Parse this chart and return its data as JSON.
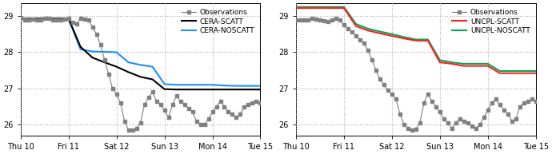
{
  "xlim": [
    0,
    120
  ],
  "ylim": [
    25.7,
    29.35
  ],
  "yticks": [
    26,
    27,
    28,
    29
  ],
  "xtick_positions": [
    0,
    24,
    48,
    72,
    96,
    120
  ],
  "xtick_labels": [
    "Thu 10",
    "Fri 11",
    "Sat 12",
    "Sun 13",
    "Mon 14",
    "Tue 15"
  ],
  "obs1_x": [
    0,
    2,
    4,
    6,
    8,
    10,
    12,
    14,
    16,
    18,
    20,
    22,
    24,
    26,
    28,
    30,
    32,
    34,
    36,
    38,
    40,
    42,
    44,
    46,
    48,
    50,
    52,
    54,
    56,
    58,
    60,
    62,
    64,
    66,
    68,
    70,
    72,
    74,
    76,
    78,
    80,
    82,
    84,
    86,
    88,
    90,
    92,
    94,
    96,
    98,
    100,
    102,
    104,
    106,
    108,
    110,
    112,
    114,
    116,
    118,
    120
  ],
  "obs1_y": [
    28.95,
    28.9,
    28.88,
    28.92,
    28.88,
    28.9,
    28.93,
    28.93,
    28.9,
    28.88,
    28.9,
    28.92,
    28.93,
    28.83,
    28.78,
    28.93,
    28.92,
    28.88,
    28.7,
    28.5,
    28.2,
    27.8,
    27.4,
    27.0,
    26.85,
    26.6,
    26.1,
    25.85,
    25.85,
    25.9,
    26.05,
    26.55,
    26.75,
    26.9,
    26.65,
    26.55,
    26.4,
    26.2,
    26.55,
    26.8,
    26.65,
    26.55,
    26.45,
    26.35,
    26.1,
    26.0,
    26.0,
    26.15,
    26.35,
    26.5,
    26.65,
    26.5,
    26.35,
    26.3,
    26.2,
    26.3,
    26.5,
    26.55,
    26.6,
    26.65,
    26.6
  ],
  "cera_scatt_x": [
    0,
    6,
    12,
    18,
    24,
    30,
    36,
    42,
    48,
    54,
    60,
    66,
    72,
    78,
    84,
    90,
    96,
    102,
    108,
    114,
    120
  ],
  "cera_scatt_y": [
    28.92,
    28.93,
    28.93,
    28.93,
    28.93,
    28.15,
    27.85,
    27.72,
    27.6,
    27.45,
    27.32,
    27.25,
    26.98,
    26.97,
    26.97,
    26.97,
    26.97,
    26.97,
    26.97,
    26.97,
    26.97
  ],
  "cera_noscatt_x": [
    0,
    6,
    12,
    18,
    24,
    30,
    36,
    42,
    48,
    54,
    60,
    66,
    72,
    78,
    84,
    90,
    96,
    102,
    108,
    114,
    120
  ],
  "cera_noscatt_y": [
    28.92,
    28.93,
    28.93,
    28.93,
    28.93,
    28.08,
    28.02,
    28.01,
    28.0,
    27.72,
    27.65,
    27.6,
    27.12,
    27.1,
    27.1,
    27.1,
    27.1,
    27.08,
    27.07,
    27.07,
    27.07
  ],
  "obs2_x": [
    0,
    2,
    4,
    6,
    8,
    10,
    12,
    14,
    16,
    18,
    20,
    22,
    24,
    26,
    28,
    30,
    32,
    34,
    36,
    38,
    40,
    42,
    44,
    46,
    48,
    50,
    52,
    54,
    56,
    58,
    60,
    62,
    64,
    66,
    68,
    70,
    72,
    74,
    76,
    78,
    80,
    82,
    84,
    86,
    88,
    90,
    92,
    94,
    96,
    98,
    100,
    102,
    104,
    106,
    108,
    110,
    112,
    114,
    116,
    118,
    120
  ],
  "obs2_y": [
    28.9,
    28.88,
    28.9,
    28.88,
    28.93,
    28.92,
    28.88,
    28.87,
    28.85,
    28.9,
    28.93,
    28.88,
    28.75,
    28.65,
    28.55,
    28.45,
    28.35,
    28.25,
    28.05,
    27.8,
    27.5,
    27.25,
    27.1,
    26.95,
    26.85,
    26.7,
    26.3,
    26.0,
    25.9,
    25.85,
    25.88,
    26.05,
    26.6,
    26.85,
    26.65,
    26.5,
    26.35,
    26.15,
    26.05,
    25.9,
    26.05,
    26.15,
    26.1,
    26.05,
    25.95,
    25.9,
    26.0,
    26.2,
    26.4,
    26.6,
    26.7,
    26.55,
    26.4,
    26.3,
    26.1,
    26.15,
    26.5,
    26.6,
    26.65,
    26.7,
    26.65
  ],
  "uncpl_scatt_x": [
    0,
    6,
    12,
    18,
    24,
    30,
    36,
    42,
    48,
    54,
    60,
    66,
    72,
    78,
    84,
    90,
    96,
    102,
    108,
    114,
    120
  ],
  "uncpl_scatt_y": [
    29.22,
    29.22,
    29.22,
    29.22,
    29.22,
    28.72,
    28.6,
    28.52,
    28.45,
    28.38,
    28.32,
    28.32,
    27.72,
    27.68,
    27.62,
    27.62,
    27.62,
    27.42,
    27.42,
    27.42,
    27.42
  ],
  "uncpl_noscatt_x": [
    0,
    6,
    12,
    18,
    24,
    30,
    36,
    42,
    48,
    54,
    60,
    66,
    72,
    78,
    84,
    90,
    96,
    102,
    108,
    114,
    120
  ],
  "uncpl_noscatt_y": [
    29.25,
    29.25,
    29.25,
    29.25,
    29.25,
    28.78,
    28.65,
    28.57,
    28.5,
    28.42,
    28.35,
    28.35,
    27.78,
    27.72,
    27.68,
    27.68,
    27.68,
    27.48,
    27.48,
    27.48,
    27.48
  ],
  "obs_color": "#808080",
  "obs_marker": "s",
  "obs_markersize": 3,
  "cera_scatt_color": "#000000",
  "cera_noscatt_color": "#1e90ff",
  "uncpl_scatt_color": "#ff2020",
  "uncpl_noscatt_color": "#00aa55",
  "legend1": [
    "Observations",
    "CERA-SCATT",
    "CERA-NOSCATT"
  ],
  "legend2": [
    "Observations",
    "UNCPL-SCATT",
    "UNCPL-NOSCATT"
  ],
  "bg_color": "#ffffff",
  "grid_color": "#aaaaaa"
}
